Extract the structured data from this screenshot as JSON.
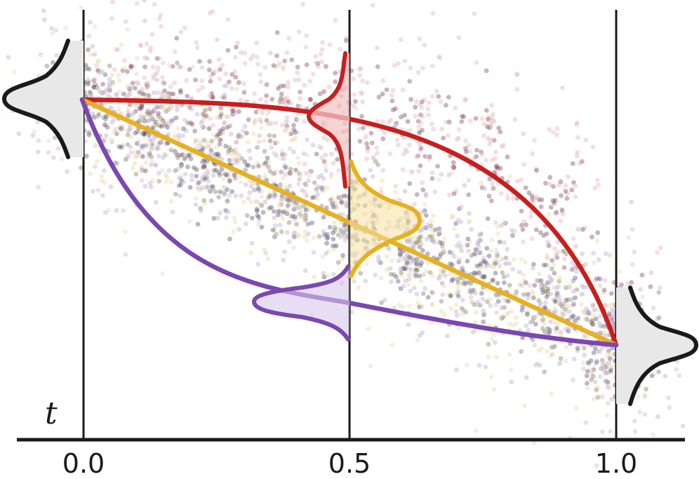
{
  "axis": {
    "variable": "t",
    "ticks": [
      "0.0",
      "0.5",
      "1.0"
    ]
  },
  "colors": {
    "axis": "#1a1a1a",
    "top_path": "#c81e1e",
    "middle_path": "#e6b020",
    "bottom_path": "#7a48b0",
    "marginal_fill": "#e8e8e8",
    "top_cloud": "#7a3a4e",
    "middle_cloud": "#7c7452",
    "bottom_cloud": "#4a4468",
    "faint_pink": "#e2b8c4",
    "faint_cream": "#e8dcae",
    "faint_lilac": "#bcb4d0"
  }
}
